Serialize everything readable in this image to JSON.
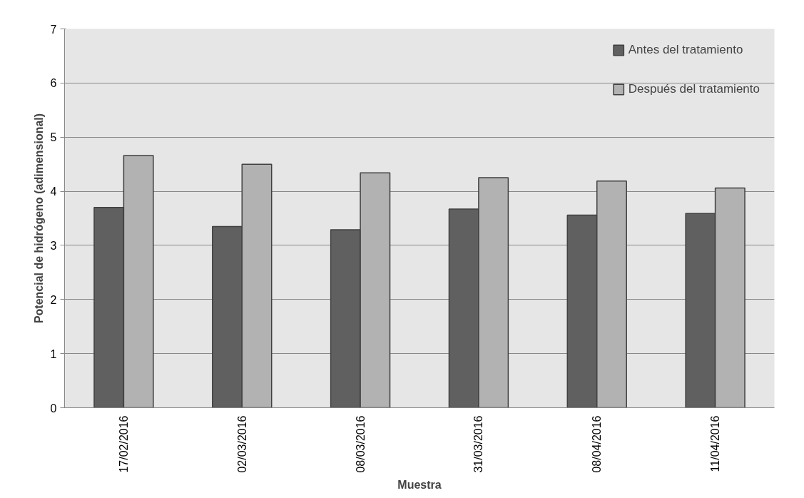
{
  "chart_data": {
    "type": "bar",
    "xlabel": "Muestra",
    "ylabel": "Potencial de hidrógeno (adimensional)",
    "categories": [
      "17/02/2016",
      "02/03/2016",
      "08/03/2016",
      "31/03/2016",
      "08/04/2016",
      "11/04/2016"
    ],
    "series": [
      {
        "name": "Antes del tratamiento",
        "color": "#606060",
        "values": [
          3.7,
          3.35,
          3.29,
          3.67,
          3.56,
          3.59
        ]
      },
      {
        "name": "Después del tratamiento",
        "color": "#b2b2b2",
        "values": [
          4.66,
          4.5,
          4.34,
          4.25,
          4.19,
          4.06
        ]
      }
    ],
    "ylim": [
      0,
      7
    ],
    "yticks": [
      0,
      1,
      2,
      3,
      4,
      5,
      6,
      7
    ],
    "grid": "y",
    "legend": "top right"
  }
}
